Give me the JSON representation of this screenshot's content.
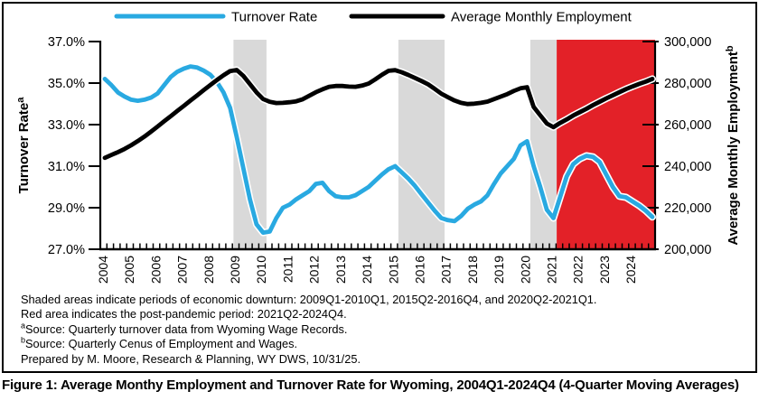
{
  "caption": "Figure 1: Average Monthy Employment and Turnover Rate for Wyoming, 2004Q1-2024Q4 (4-Quarter Moving Averages)",
  "footnotes": [
    {
      "sup": "",
      "text": "Shaded areas indicate periods of economic downturn: 2009Q1-2010Q1, 2015Q2-2016Q4, and 2020Q2-2021Q1."
    },
    {
      "sup": "",
      "text": "Red area indicates the post-pandemic period: 2021Q2-2024Q4."
    },
    {
      "sup": "a",
      "text": "Source: Quarterly turnover data from Wyoming Wage Records."
    },
    {
      "sup": "b",
      "text": "Source: Quarterly Cenus of Employment and Wages."
    },
    {
      "sup": "",
      "text": "Prepared by M. Moore, Research & Planning, WY DWS, 10/31/25."
    }
  ],
  "chart_data": {
    "type": "line",
    "x_start": "2004Q1",
    "x_end": "2024Q4",
    "quarters_per_year": 4,
    "x_tick_labels": [
      "2004",
      "2005",
      "2006",
      "2007",
      "2008",
      "2009",
      "2010",
      "2011",
      "2012",
      "2013",
      "2014",
      "2015",
      "2016",
      "2017",
      "2018",
      "2019",
      "2020",
      "2021",
      "2022",
      "2023",
      "2024"
    ],
    "legend": [
      "Turnover Rate",
      "Average Monthly Employment"
    ],
    "left_axis": {
      "title": "Turnover Rate",
      "sup": "a",
      "min": 27,
      "max": 37,
      "tick_values": [
        37,
        35,
        33,
        31,
        29,
        27
      ],
      "tick_labels": [
        "37.0%",
        "35.0%",
        "33.0%",
        "31.0%",
        "29.0%",
        "27.0%"
      ]
    },
    "right_axis": {
      "title": "Average Monthly Employment",
      "sup": "b",
      "min": 200000,
      "max": 300000,
      "tick_values": [
        300000,
        280000,
        260000,
        240000,
        220000,
        200000
      ],
      "tick_labels": [
        "300,000",
        "280,000",
        "260,000",
        "240,000",
        "220,000",
        "200,000"
      ]
    },
    "bands": {
      "downturn_color": "#D9D9D9",
      "post_pandemic_color": "#E32128",
      "downturns": [
        [
          "2009Q1",
          "2010Q1"
        ],
        [
          "2015Q2",
          "2016Q4"
        ],
        [
          "2020Q2",
          "2021Q1"
        ]
      ],
      "post_pandemic": [
        "2021Q2",
        "2024Q4"
      ]
    },
    "series": [
      {
        "name": "Turnover Rate",
        "sup": "a",
        "axis": "left",
        "color": "#29A9E1",
        "values": [
          35.2,
          34.9,
          34.55,
          34.35,
          34.2,
          34.15,
          34.2,
          34.3,
          34.5,
          34.9,
          35.3,
          35.55,
          35.7,
          35.8,
          35.75,
          35.6,
          35.4,
          35.05,
          34.55,
          33.8,
          32.4,
          30.9,
          29.4,
          28.2,
          27.8,
          27.85,
          28.5,
          29.0,
          29.15,
          29.4,
          29.6,
          29.8,
          30.15,
          30.2,
          29.8,
          29.55,
          29.5,
          29.5,
          29.6,
          29.8,
          30.0,
          30.3,
          30.6,
          30.85,
          31.0,
          30.7,
          30.4,
          30.05,
          29.65,
          29.25,
          28.85,
          28.5,
          28.4,
          28.35,
          28.6,
          28.95,
          29.15,
          29.3,
          29.6,
          30.15,
          30.65,
          31.0,
          31.35,
          32.0,
          32.2,
          31.0,
          30.0,
          28.9,
          28.5,
          29.5,
          30.5,
          31.1,
          31.35,
          31.5,
          31.45,
          31.2,
          30.6,
          30.0,
          29.55,
          29.5,
          29.3,
          29.1,
          28.85,
          28.55
        ]
      },
      {
        "name": "Average Monthly Employment",
        "sup": "b",
        "axis": "right",
        "color": "#000000",
        "values": [
          244000,
          245400,
          246800,
          248300,
          250100,
          252100,
          254200,
          256600,
          259100,
          261600,
          264100,
          266600,
          269100,
          271600,
          274100,
          276600,
          279100,
          281500,
          283800,
          285800,
          286300,
          283500,
          279500,
          275500,
          272300,
          271000,
          270400,
          270500,
          270800,
          271200,
          272200,
          273900,
          275600,
          277000,
          278200,
          278600,
          278600,
          278300,
          278200,
          278800,
          279800,
          281800,
          284000,
          285900,
          286200,
          285200,
          283900,
          282500,
          281000,
          279400,
          277200,
          274900,
          273200,
          271600,
          270500,
          269900,
          270100,
          270500,
          271100,
          272300,
          273500,
          274700,
          276200,
          277500,
          278000,
          268500,
          264500,
          260500,
          258800,
          260800,
          262500,
          264400,
          266000,
          267600,
          269400,
          271000,
          272600,
          274100,
          275600,
          277100,
          278400,
          279600,
          280700,
          282000
        ]
      }
    ],
    "colors": {
      "axis": "#000000",
      "background": "#FFFFFF",
      "border": "#000000",
      "line_halo": "#FFFFFF"
    }
  }
}
